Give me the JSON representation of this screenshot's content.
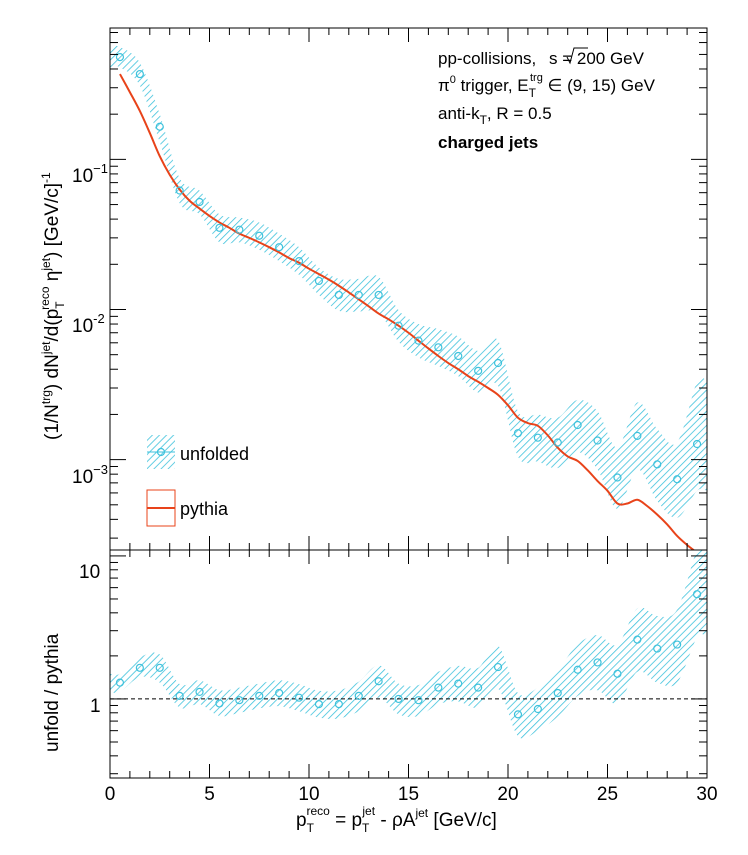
{
  "chart_data": [
    {
      "type": "line",
      "panel": "top",
      "yscale": "log",
      "xlim": [
        0,
        30
      ],
      "ylim": [
        0.00025,
        0.75
      ],
      "y_tick_labels": [
        {
          "value": 0.1,
          "base": "10",
          "exp": "−1"
        },
        {
          "value": 0.01,
          "base": "10",
          "exp": "-2"
        },
        {
          "value": 0.001,
          "base": "10",
          "exp": "−3"
        }
      ],
      "ylabel": {
        "p1": "(1/N",
        "s1": "trg",
        "p2": ") dN",
        "s2": "jet",
        "p3": "/d(p",
        "sub1": "T",
        "sup1": "reco",
        "p4": " η",
        "s3": "jet",
        "p5": ") [GeV/c]",
        "s4": "-1"
      },
      "annotations": {
        "line1_a": "pp-collisions, ",
        "line1_b": "s = 200 GeV",
        "line2_a": "π",
        "line2_sup0": "0",
        "line2_b": " trigger, E",
        "line2_sub": "T",
        "line2_sup": "trg",
        "line2_c": " ∈ (9, 15) GeV",
        "line3_a": "anti-k",
        "line3_sub": "T",
        "line3_b": ", R = 0.5",
        "line4": "charged jets"
      },
      "legend": {
        "unfolded": "unfolded",
        "pythia": "pythia",
        "placement": "bottom-left"
      },
      "series": [
        {
          "name": "unfolded",
          "marker": "open-circle",
          "color": "#3ec2dc",
          "x": [
            0.5,
            1.5,
            2.5,
            3.5,
            4.5,
            5.5,
            6.5,
            7.5,
            8.5,
            9.5,
            10.5,
            11.5,
            12.5,
            13.5,
            14.5,
            15.5,
            16.5,
            17.5,
            18.5,
            19.5,
            20.5,
            21.5,
            22.5,
            23.5,
            24.5,
            25.5,
            26.5,
            27.5,
            28.5,
            29.5
          ],
          "y": [
            0.48,
            0.37,
            0.165,
            0.062,
            0.052,
            0.035,
            0.034,
            0.031,
            0.026,
            0.021,
            0.0155,
            0.0125,
            0.0125,
            0.0125,
            0.0078,
            0.0062,
            0.0056,
            0.0049,
            0.0039,
            0.0044,
            0.0015,
            0.0014,
            0.0013,
            0.0017,
            0.00134,
            0.00076,
            0.00144,
            0.00093,
            0.00074,
            0.00127
          ],
          "band_lo": [
            0.41,
            0.31,
            0.13,
            0.051,
            0.043,
            0.028,
            0.028,
            0.025,
            0.021,
            0.017,
            0.0125,
            0.0098,
            0.0097,
            0.0095,
            0.0061,
            0.0048,
            0.0042,
            0.0036,
            0.0028,
            0.0031,
            0.00105,
            0.00097,
            0.00088,
            0.00112,
            0.00086,
            0.00047,
            0.00086,
            0.00053,
            0.00041,
            0.00062
          ],
          "band_hi": [
            0.56,
            0.44,
            0.2,
            0.075,
            0.062,
            0.043,
            0.041,
            0.038,
            0.032,
            0.026,
            0.019,
            0.016,
            0.016,
            0.0165,
            0.0099,
            0.008,
            0.0074,
            0.0066,
            0.0053,
            0.0062,
            0.0021,
            0.002,
            0.0019,
            0.0025,
            0.0021,
            0.0012,
            0.0024,
            0.0016,
            0.0013,
            0.0033
          ]
        },
        {
          "name": "pythia",
          "marker": "line",
          "color": "#e8431a",
          "x": [
            0.5,
            1.0,
            1.5,
            2.0,
            2.5,
            3.0,
            3.5,
            4.0,
            4.5,
            5.0,
            5.5,
            6.0,
            6.5,
            7.0,
            7.5,
            8.0,
            8.5,
            9.0,
            9.5,
            10.0,
            10.5,
            11.0,
            11.5,
            12.0,
            12.5,
            13.0,
            13.5,
            14.0,
            14.5,
            15.0,
            15.5,
            16.0,
            16.5,
            17.0,
            17.5,
            18.0,
            18.5,
            19.0,
            19.5,
            20.0,
            20.5,
            21.0,
            21.5,
            22.0,
            22.5,
            23.0,
            23.5,
            24.0,
            24.5,
            25.0,
            25.5,
            26.0,
            26.5,
            27.0,
            27.5,
            28.0,
            28.5,
            29.0,
            29.5
          ],
          "y": [
            0.37,
            0.28,
            0.21,
            0.15,
            0.105,
            0.079,
            0.063,
            0.053,
            0.047,
            0.042,
            0.038,
            0.035,
            0.032,
            0.03,
            0.028,
            0.026,
            0.024,
            0.022,
            0.0205,
            0.0187,
            0.0172,
            0.0158,
            0.0144,
            0.013,
            0.0117,
            0.0105,
            0.0094,
            0.0086,
            0.0078,
            0.007,
            0.0062,
            0.0055,
            0.0049,
            0.0044,
            0.004,
            0.0036,
            0.0033,
            0.003,
            0.0027,
            0.0023,
            0.0019,
            0.00175,
            0.00168,
            0.00145,
            0.0012,
            0.00105,
            0.00098,
            0.00085,
            0.00072,
            0.00062,
            0.00051,
            0.00051,
            0.00054,
            0.00049,
            0.00043,
            0.00037,
            0.00031,
            0.00027,
            0.00024
          ]
        }
      ]
    },
    {
      "type": "scatter",
      "panel": "bottom",
      "yscale": "log",
      "xlim": [
        0,
        30
      ],
      "ylim": [
        0.28,
        11
      ],
      "x_ticks": [
        0,
        5,
        10,
        15,
        20,
        25,
        30
      ],
      "x_tick_labels": [
        "0",
        "5",
        "10",
        "15",
        "20",
        "25",
        "30"
      ],
      "y_tick_labels": [
        {
          "value": 1,
          "label": "1"
        },
        {
          "value": 10,
          "label": "10"
        }
      ],
      "ylabel": "unfold / pythia",
      "xlabel": {
        "p1": "p",
        "sub1": "T",
        "sup1": "reco",
        "p2": " = p",
        "sub2": "T",
        "sup2": "jet",
        "p3": " - ρA",
        "sup3": "jet",
        "p4": " [GeV/c]"
      },
      "reference_line": 1,
      "series": [
        {
          "name": "unfold / pythia",
          "marker": "open-circle",
          "color": "#3ec2dc",
          "x": [
            0.5,
            1.5,
            2.5,
            3.5,
            4.5,
            5.5,
            6.5,
            7.5,
            8.5,
            9.5,
            10.5,
            11.5,
            12.5,
            13.5,
            14.5,
            15.5,
            16.5,
            17.5,
            18.5,
            19.5,
            20.5,
            21.5,
            22.5,
            23.5,
            24.5,
            25.5,
            26.5,
            27.5,
            28.5,
            29.5
          ],
          "y": [
            1.3,
            1.65,
            1.65,
            1.05,
            1.12,
            0.93,
            0.98,
            1.05,
            1.1,
            1.02,
            0.92,
            0.92,
            1.05,
            1.33,
            1.0,
            0.98,
            1.2,
            1.28,
            1.2,
            1.67,
            0.78,
            0.85,
            1.1,
            1.6,
            1.8,
            1.5,
            2.6,
            2.25,
            2.4,
            5.4
          ],
          "band_lo": [
            1.12,
            1.42,
            1.3,
            0.87,
            0.92,
            0.76,
            0.8,
            0.86,
            0.89,
            0.82,
            0.74,
            0.73,
            0.82,
            1.02,
            0.78,
            0.76,
            0.92,
            0.96,
            0.87,
            1.18,
            0.55,
            0.6,
            0.75,
            1.05,
            1.15,
            0.93,
            1.55,
            1.3,
            1.3,
            2.7
          ],
          "band_hi": [
            1.5,
            1.95,
            2.05,
            1.27,
            1.35,
            1.15,
            1.2,
            1.28,
            1.35,
            1.27,
            1.14,
            1.15,
            1.32,
            1.72,
            1.28,
            1.25,
            1.55,
            1.7,
            1.65,
            2.35,
            1.1,
            1.2,
            1.6,
            2.4,
            2.8,
            2.4,
            4.3,
            3.8,
            4.2,
            11
          ]
        }
      ]
    }
  ]
}
